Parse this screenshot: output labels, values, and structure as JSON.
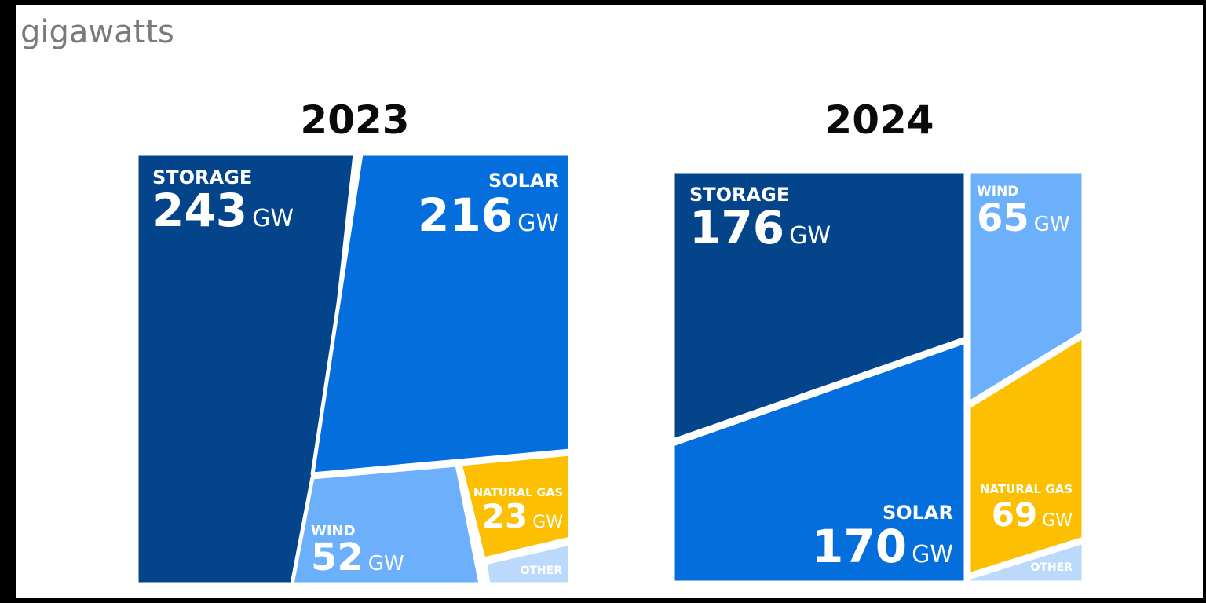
{
  "chart_data": {
    "type": "voronoi-treemap",
    "unit_label": "gigawatts",
    "colors": {
      "storage": "#03448a",
      "solar": "#046fdc",
      "wind": "#6cb0fb",
      "natural_gas": "#fcbf01",
      "other": "#bad9fb"
    },
    "panels": [
      {
        "year": "2023",
        "cells": [
          {
            "category": "STORAGE",
            "value": 243,
            "value_text": "243",
            "unit": "GW",
            "color_key": "storage"
          },
          {
            "category": "SOLAR",
            "value": 216,
            "value_text": "216",
            "unit": "GW",
            "color_key": "solar"
          },
          {
            "category": "WIND",
            "value": 52,
            "value_text": "52",
            "unit": "GW",
            "color_key": "wind"
          },
          {
            "category": "NATURAL GAS",
            "value": 23,
            "value_text": "23",
            "unit": "GW",
            "color_key": "natural_gas"
          },
          {
            "category": "OTHER",
            "value": null,
            "value_text": "",
            "unit": "",
            "color_key": "other"
          }
        ]
      },
      {
        "year": "2024",
        "cells": [
          {
            "category": "STORAGE",
            "value": 176,
            "value_text": "176",
            "unit": "GW",
            "color_key": "storage"
          },
          {
            "category": "WIND",
            "value": 65,
            "value_text": "65",
            "unit": "GW",
            "color_key": "wind"
          },
          {
            "category": "SOLAR",
            "value": 170,
            "value_text": "170",
            "unit": "GW",
            "color_key": "solar"
          },
          {
            "category": "NATURAL GAS",
            "value": 69,
            "value_text": "69",
            "unit": "GW",
            "color_key": "natural_gas"
          },
          {
            "category": "OTHER",
            "value": null,
            "value_text": "",
            "unit": "",
            "color_key": "other"
          }
        ]
      }
    ]
  }
}
